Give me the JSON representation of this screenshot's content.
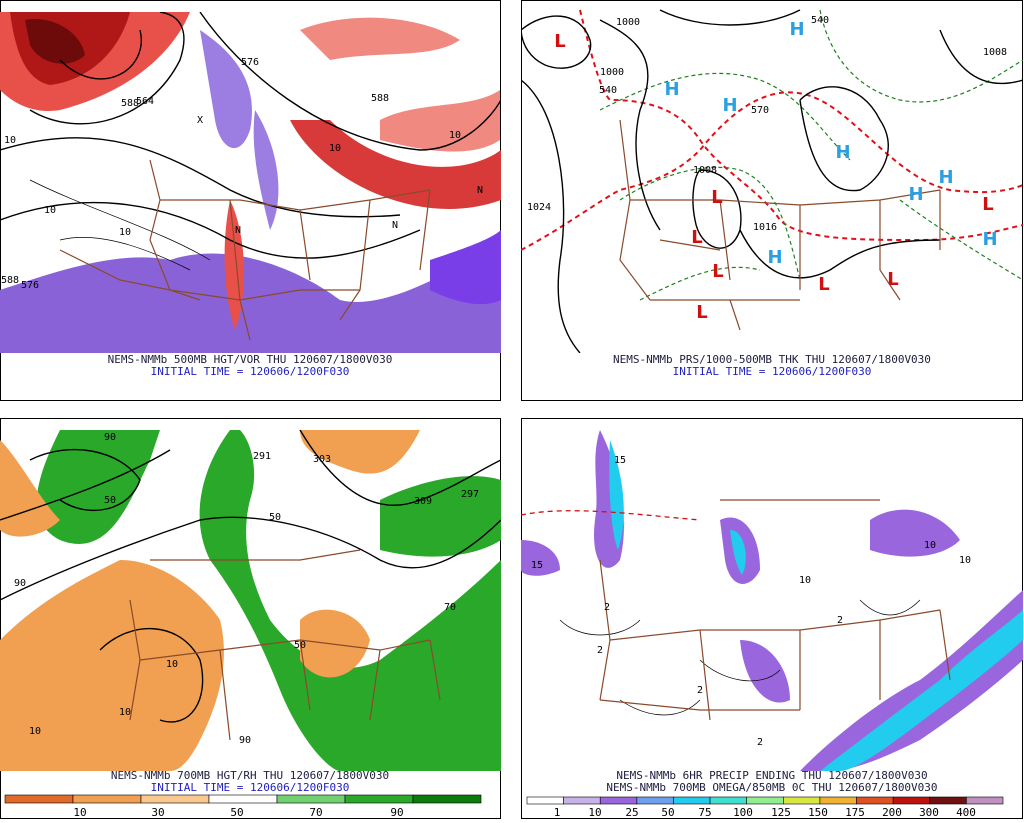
{
  "panels": [
    {
      "caption": [
        "NEMS-NMMb 500MB HGT/VOR THU 120607/1800V030",
        "INITIAL TIME = 120606/1200F030"
      ],
      "labels": [
        "576",
        "588",
        "564",
        "588",
        "576",
        "588",
        "10",
        "10",
        "10",
        "10",
        "10",
        "N",
        "N",
        "N",
        "X"
      ]
    },
    {
      "caption": [
        "NEMS-NMMb PRS/1000-500MB THK THU 120607/1800V030",
        "INITIAL TIME = 120606/1200F030"
      ],
      "labels": [
        "1024",
        "1016",
        "1008",
        "1000",
        "1008",
        "1000",
        "540",
        "540",
        "570"
      ],
      "markers": [
        "L",
        "L",
        "L",
        "L",
        "L",
        "L",
        "L",
        "L",
        "H",
        "H",
        "H",
        "H",
        "H",
        "H",
        "H",
        "H"
      ]
    },
    {
      "caption": [
        "NEMS-NMMb 700MB HGT/RH THU 120607/1800V030",
        "INITIAL TIME = 120606/1200F030"
      ],
      "labels": [
        "90",
        "90",
        "50",
        "50",
        "10",
        "10",
        "10",
        "90",
        "70",
        "50",
        "309",
        "291",
        "297",
        "303"
      ],
      "colorbar": [
        "10",
        "30",
        "50",
        "70",
        "90"
      ]
    },
    {
      "caption": [
        "NEMS-NMMb 6HR PRECIP ENDING THU 120607/1800V030",
        "NEMS-NMMb 700MB OMEGA/850MB 0C THU 120607/1800V030"
      ],
      "labels": [
        "2",
        "2",
        "2",
        "2",
        "2",
        "10",
        "10",
        "10",
        "15",
        "15"
      ],
      "colorbar": [
        "1",
        "10",
        "25",
        "50",
        "75",
        "100",
        "125",
        "150",
        "175",
        "200",
        "300",
        "400"
      ]
    }
  ]
}
